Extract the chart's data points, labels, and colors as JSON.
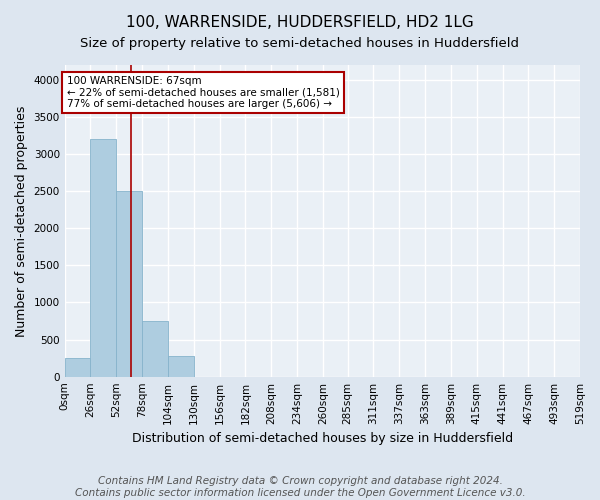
{
  "title": "100, WARRENSIDE, HUDDERSFIELD, HD2 1LG",
  "subtitle": "Size of property relative to semi-detached houses in Huddersfield",
  "xlabel": "Distribution of semi-detached houses by size in Huddersfield",
  "ylabel": "Number of semi-detached properties",
  "footer_line1": "Contains HM Land Registry data © Crown copyright and database right 2024.",
  "footer_line2": "Contains public sector information licensed under the Open Government Licence v3.0.",
  "bar_edges": [
    0,
    26,
    52,
    78,
    104,
    130,
    156,
    182,
    208,
    234,
    260,
    285,
    311,
    337,
    363,
    389,
    415,
    441,
    467,
    493,
    519
  ],
  "bar_heights": [
    250,
    3200,
    2500,
    750,
    275,
    0,
    0,
    0,
    0,
    0,
    0,
    0,
    0,
    0,
    0,
    0,
    0,
    0,
    0,
    0
  ],
  "bar_color": "#aecde0",
  "bar_edgecolor": "#86b3cc",
  "property_size": 67,
  "vline_color": "#aa0000",
  "annotation_text": "100 WARRENSIDE: 67sqm\n← 22% of semi-detached houses are smaller (1,581)\n77% of semi-detached houses are larger (5,606) →",
  "annotation_box_color": "#ffffff",
  "annotation_box_edgecolor": "#aa0000",
  "ylim": [
    0,
    4200
  ],
  "yticks": [
    0,
    500,
    1000,
    1500,
    2000,
    2500,
    3000,
    3500,
    4000
  ],
  "bg_color": "#dde6f0",
  "plot_bg_color": "#eaf0f6",
  "grid_color": "#ffffff",
  "title_fontsize": 11,
  "subtitle_fontsize": 9.5,
  "axis_label_fontsize": 9,
  "tick_fontsize": 7.5,
  "footer_fontsize": 7.5
}
